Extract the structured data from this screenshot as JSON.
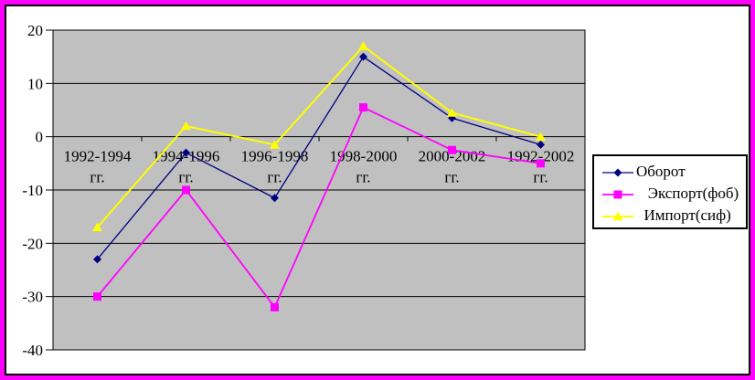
{
  "window": {
    "background": "#FFFFFF",
    "outer_border_color": "#FF00FF",
    "inner_border_color": "#000000"
  },
  "chart_data": {
    "type": "line",
    "title": "",
    "xlabel": "",
    "ylabel": "",
    "categories": [
      "1992-1994 гг.",
      "1994-1996 гг.",
      "1996-1998 гг.",
      "1998-2000 гг.",
      "2000-2002 гг.",
      "1992-2002 гг."
    ],
    "series": [
      {
        "name": "Оборот",
        "legend_label": "Оборот",
        "color": "#000080",
        "marker": "diamond",
        "line_width": 1.3,
        "values": [
          -23,
          -3,
          -11.5,
          15,
          3.5,
          -1.5
        ]
      },
      {
        "name": "Экспорт(фоб)",
        "legend_label": "   Экспорт(фоб)",
        "color": "#FF00FF",
        "marker": "square",
        "line_width": 1.8,
        "values": [
          -30,
          -10,
          -32,
          5.5,
          -2.5,
          -5
        ]
      },
      {
        "name": "Импорт(сиф)",
        "legend_label": "  Импорт(сиф)",
        "color": "#FFFF00",
        "marker": "triangle",
        "line_width": 2,
        "values": [
          -17,
          2,
          -1.5,
          17,
          4.5,
          0
        ]
      }
    ],
    "ylim": [
      -40,
      20
    ],
    "yticks": [
      "20",
      "10",
      "0",
      "-10",
      "-20",
      "-30",
      "-40"
    ],
    "x_axis_cross": 0,
    "grid": true,
    "plot_bg": "#C0C0C0",
    "gridline_color": "#000000",
    "legend_position": "right"
  }
}
